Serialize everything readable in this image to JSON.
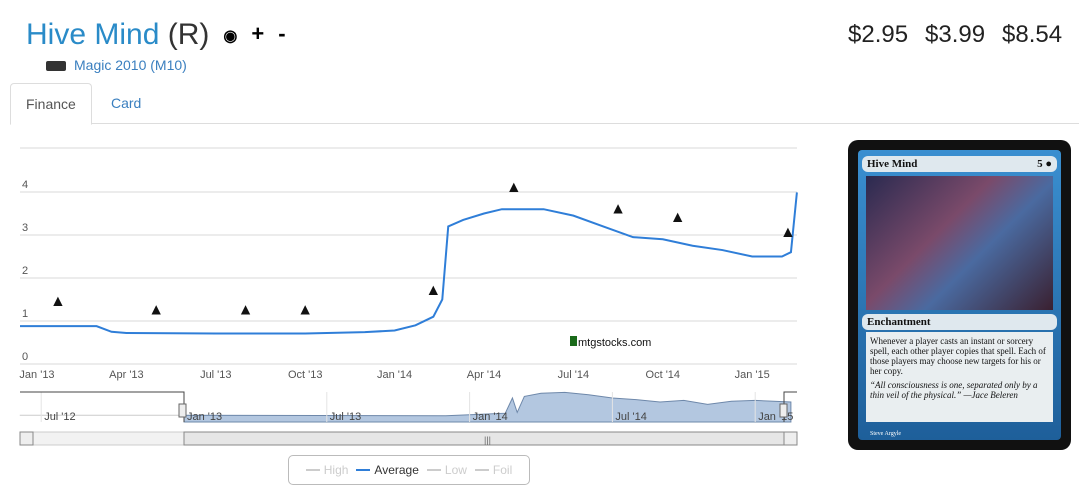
{
  "header": {
    "card_name": "Hive Mind",
    "rarity": "(R)",
    "watch_icon": "eye-icon",
    "add_label": "+",
    "remove_label": "-",
    "set_name": "Magic 2010 (M10)"
  },
  "prices": [
    {
      "value": "$2.95",
      "color": "#dff0d8"
    },
    {
      "value": "$3.99",
      "color": "#d9e4f7"
    },
    {
      "value": "$8.54",
      "color": "#f2dede"
    }
  ],
  "tabs": [
    {
      "label": "Finance"
    },
    {
      "label": "Card"
    }
  ],
  "card": {
    "name": "Hive Mind",
    "cost": "5 ●",
    "type": "Enchantment",
    "rules": "Whenever a player casts an instant or sorcery spell, each other player copies that spell. Each of those players may choose new targets for his or her copy.",
    "flavor": "“All consciousness is one, separated only by a thin veil of the physical.” —Jace Beleren",
    "artist": "Steve Argyle"
  },
  "watermark": "mtgstocks.com",
  "legend": [
    {
      "label": "High",
      "on": false
    },
    {
      "label": "Average",
      "on": true
    },
    {
      "label": "Low",
      "on": false
    },
    {
      "label": "Foil",
      "on": false
    }
  ],
  "chart_data": {
    "type": "line",
    "x_unit": "months since Jan '13",
    "xticks": [
      {
        "x": 0,
        "label": "Jan '13"
      },
      {
        "x": 3,
        "label": "Apr '13"
      },
      {
        "x": 6,
        "label": "Jul '13"
      },
      {
        "x": 9,
        "label": "Oct '13"
      },
      {
        "x": 12,
        "label": "Jan '14"
      },
      {
        "x": 15,
        "label": "Apr '14"
      },
      {
        "x": 18,
        "label": "Jul '14"
      },
      {
        "x": 21,
        "label": "Oct '14"
      },
      {
        "x": 24,
        "label": "Jan '15"
      }
    ],
    "yticks": [
      0,
      1,
      2,
      3,
      4
    ],
    "ylim": [
      0,
      5
    ],
    "series": [
      {
        "name": "Average",
        "color": "#2f7ed8",
        "points": [
          [
            -0.6,
            0.88
          ],
          [
            2,
            0.88
          ],
          [
            2.5,
            0.75
          ],
          [
            3,
            0.72
          ],
          [
            6,
            0.71
          ],
          [
            9,
            0.71
          ],
          [
            11,
            0.74
          ],
          [
            12,
            0.78
          ],
          [
            12.7,
            0.9
          ],
          [
            13.3,
            1.1
          ],
          [
            13.6,
            1.5
          ],
          [
            13.8,
            3.2
          ],
          [
            14.3,
            3.35
          ],
          [
            15,
            3.5
          ],
          [
            15.6,
            3.6
          ],
          [
            17,
            3.6
          ],
          [
            18,
            3.45
          ],
          [
            19,
            3.2
          ],
          [
            20,
            2.95
          ],
          [
            21,
            2.9
          ],
          [
            22,
            2.75
          ],
          [
            23,
            2.65
          ],
          [
            24,
            2.5
          ],
          [
            25,
            2.5
          ],
          [
            25.3,
            2.6
          ],
          [
            25.5,
            3.99
          ]
        ]
      }
    ],
    "set_markers": [
      {
        "x": 0.7,
        "y": 1.35
      },
      {
        "x": 4,
        "y": 1.15
      },
      {
        "x": 7,
        "y": 1.15
      },
      {
        "x": 9,
        "y": 1.15
      },
      {
        "x": 13.3,
        "y": 1.6
      },
      {
        "x": 16,
        "y": 4.0
      },
      {
        "x": 19.5,
        "y": 3.5
      },
      {
        "x": 21.5,
        "y": 3.3
      },
      {
        "x": 25.2,
        "y": 2.95
      }
    ],
    "navigator": {
      "xticks": [
        {
          "x": -6,
          "label": "Jul '12"
        },
        {
          "x": 0,
          "label": "Jan '13"
        },
        {
          "x": 6,
          "label": "Jul '13"
        },
        {
          "x": 12,
          "label": "Jan '14"
        },
        {
          "x": 18,
          "label": "Jul '14"
        },
        {
          "x": 24,
          "label": "Jan '15"
        }
      ],
      "range": [
        0,
        25.5
      ]
    }
  }
}
